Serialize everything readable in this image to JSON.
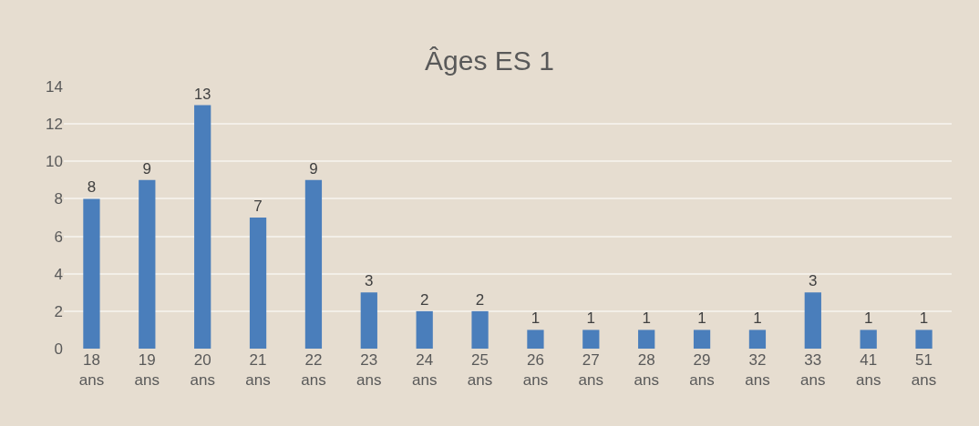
{
  "chart_data": {
    "type": "bar",
    "title": "Âges ES 1",
    "categories": [
      "18 ans",
      "19 ans",
      "20 ans",
      "21 ans",
      "22 ans",
      "23 ans",
      "24 ans",
      "25 ans",
      "26 ans",
      "27 ans",
      "28 ans",
      "29 ans",
      "32 ans",
      "33 ans",
      "41 ans",
      "51 ans"
    ],
    "values": [
      8,
      9,
      13,
      7,
      9,
      3,
      2,
      2,
      1,
      1,
      1,
      1,
      1,
      3,
      1,
      1
    ],
    "color": "#4a7ebb",
    "ylim": [
      0,
      14
    ],
    "yticks": [
      0,
      2,
      4,
      6,
      8,
      10,
      12,
      14
    ],
    "grid": "y",
    "data_labels": true,
    "legend": false
  }
}
